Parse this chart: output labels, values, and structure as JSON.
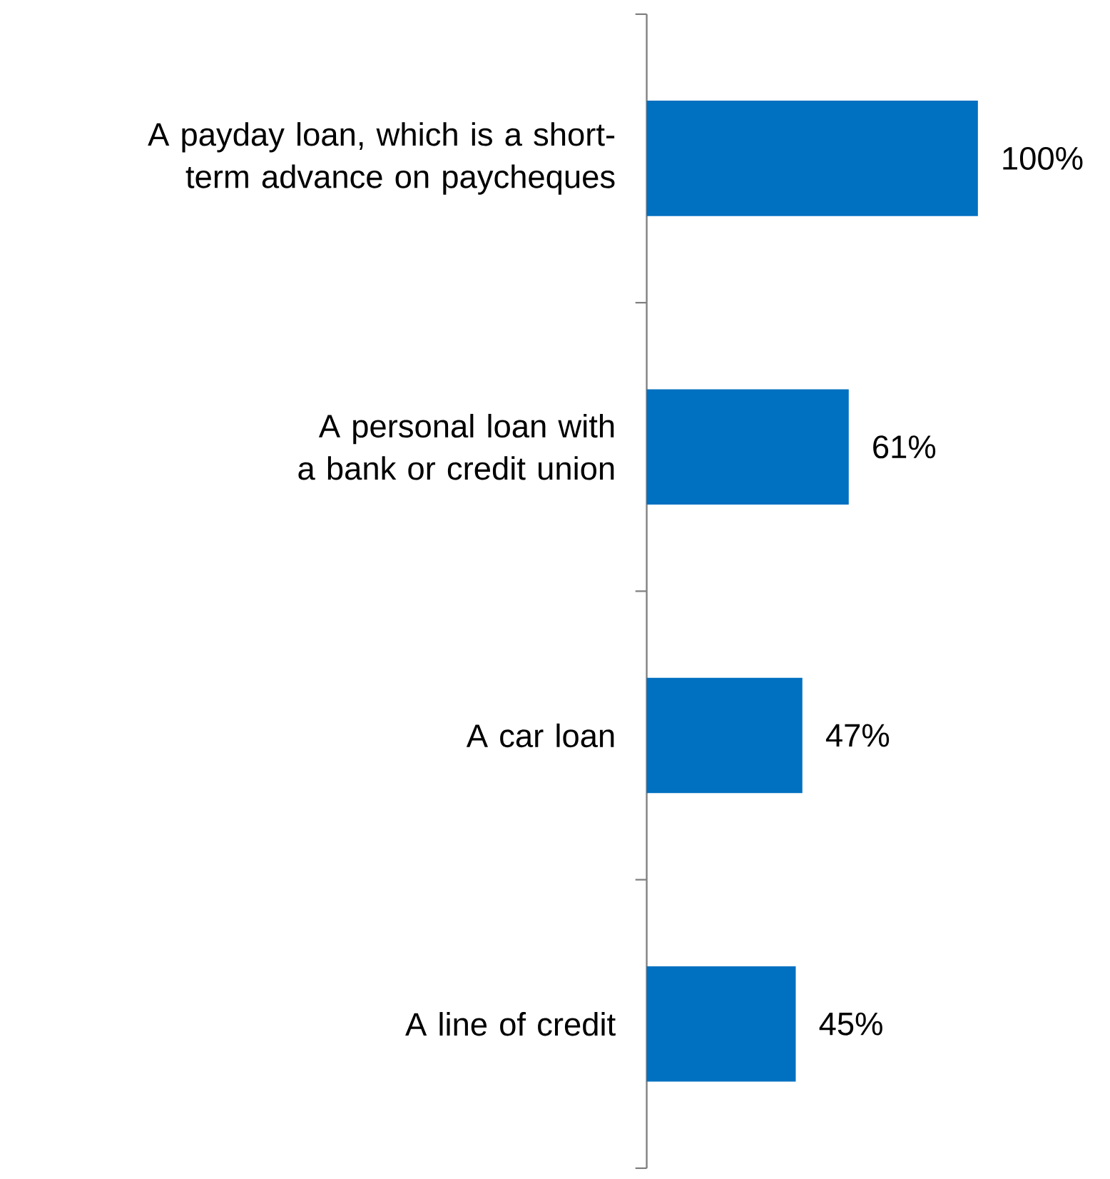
{
  "chart_data": {
    "type": "bar",
    "orientation": "horizontal",
    "categories": [
      "A payday loan, which is a short-term advance on paycheques",
      "A personal loan with a bank or credit union",
      "A car loan",
      "A line of credit"
    ],
    "values": [
      100,
      61,
      47,
      45
    ],
    "value_labels": [
      "100%",
      "61%",
      "47%",
      "45%"
    ],
    "color": "#0070c0"
  }
}
